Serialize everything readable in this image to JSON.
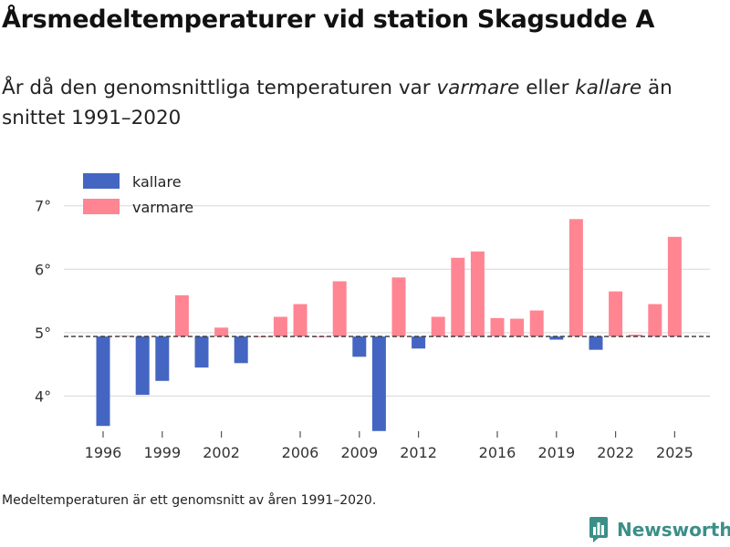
{
  "header": {
    "title": "Årsmedeltemperaturer vid station Skagsudde A",
    "subtitle_part1": "År då den genomsnittliga temperaturen var ",
    "subtitle_warm_word": "varmare",
    "subtitle_part2": " eller ",
    "subtitle_cold_word": "kallare",
    "subtitle_part3": " än snittet 1991–2020"
  },
  "footnote": "Medeltemperaturen är ett genomsnitt av åren 1991–2020.",
  "brand": {
    "name": "Newsworthy",
    "color": "#3b8f88"
  },
  "colors": {
    "kallare": "#4466c2",
    "varmare": "#ff8593",
    "grid": "#dddddd",
    "baseline": "#333333"
  },
  "chart_data": {
    "type": "bar",
    "title": "Årsmedeltemperaturer vid station Skagsudde A",
    "xlabel": "",
    "ylabel": "",
    "baseline": 4.94,
    "ylim": [
      3.45,
      7.15
    ],
    "yticks": [
      4,
      5,
      6,
      7
    ],
    "ytick_labels": [
      "4°",
      "5°",
      "6°",
      "7°"
    ],
    "xticks": [
      1996,
      1999,
      2002,
      2006,
      2009,
      2012,
      2016,
      2019,
      2022,
      2025
    ],
    "xtick_labels": [
      "1996",
      "1999",
      "2002",
      "2006",
      "2009",
      "2012",
      "2016",
      "2019",
      "2022",
      "2025"
    ],
    "legend": [
      {
        "key": "kallare",
        "label": "kallare"
      },
      {
        "key": "varmare",
        "label": "varmare"
      }
    ],
    "legend_position": "top-left",
    "grid": true,
    "years": [
      1996,
      1997,
      1998,
      1999,
      2000,
      2001,
      2002,
      2003,
      2004,
      2005,
      2006,
      2007,
      2008,
      2009,
      2010,
      2011,
      2012,
      2013,
      2014,
      2015,
      2016,
      2017,
      2018,
      2019,
      2020,
      2021,
      2022,
      2023,
      2024,
      2025
    ],
    "values": [
      3.53,
      4.95,
      4.02,
      4.24,
      5.59,
      4.45,
      5.08,
      4.52,
      4.94,
      5.25,
      5.45,
      4.94,
      5.81,
      4.62,
      3.45,
      5.87,
      4.75,
      5.25,
      6.18,
      6.28,
      5.23,
      5.22,
      5.35,
      4.89,
      6.79,
      4.73,
      5.65,
      4.97,
      5.45,
      6.51
    ]
  }
}
